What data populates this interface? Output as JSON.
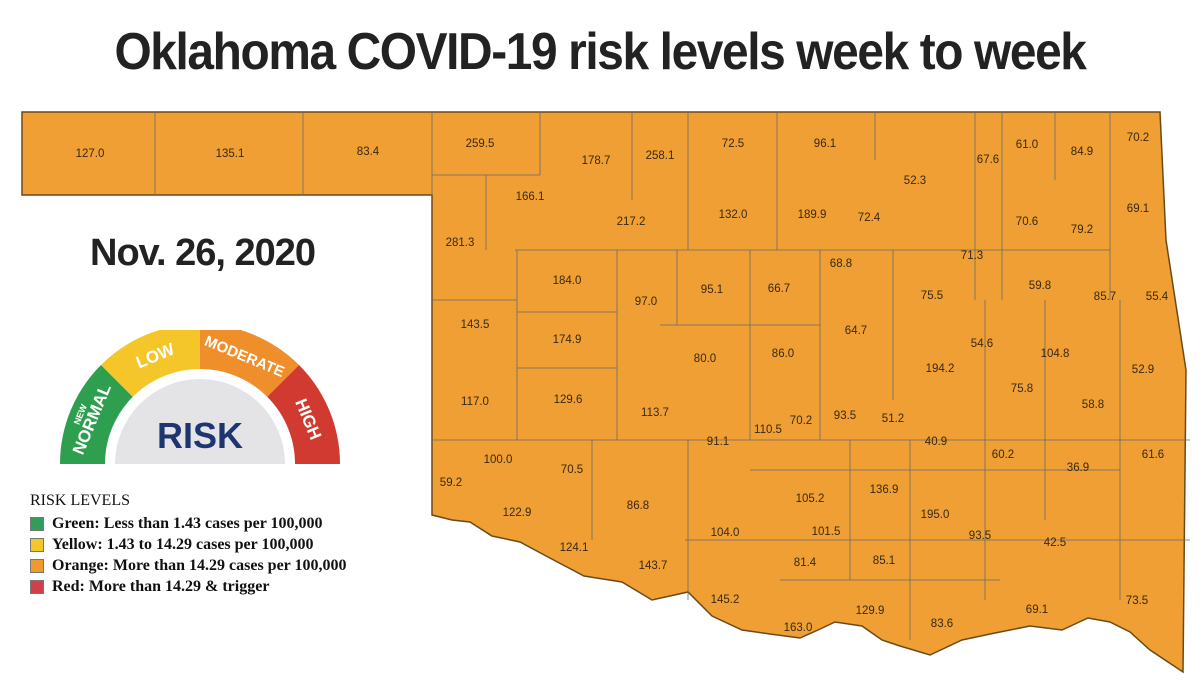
{
  "title": "Oklahoma COVID-19 risk levels week to week",
  "date": "Nov. 26, 2020",
  "map": {
    "fill_color": "#EF9F33",
    "county_rates": [
      "127.0",
      "135.1",
      "83.4",
      "259.5",
      "178.7",
      "258.1",
      "72.5",
      "96.1",
      "67.6",
      "61.0",
      "84.9",
      "70.2",
      "166.1",
      "217.2",
      "132.0",
      "189.9",
      "72.4",
      "52.3",
      "70.6",
      "79.2",
      "69.1",
      "281.3",
      "71.3",
      "68.8",
      "184.0",
      "97.0",
      "95.1",
      "66.7",
      "75.5",
      "59.8",
      "85.7",
      "55.4",
      "143.5",
      "174.9",
      "80.0",
      "86.0",
      "64.7",
      "54.6",
      "104.8",
      "194.2",
      "52.9",
      "117.0",
      "129.6",
      "113.7",
      "110.5",
      "70.2",
      "93.5",
      "51.2",
      "75.8",
      "58.8",
      "40.9",
      "91.1",
      "100.0",
      "59.2",
      "70.5",
      "60.2",
      "36.9",
      "61.6",
      "122.9",
      "86.8",
      "105.2",
      "136.9",
      "195.0",
      "104.0",
      "101.5",
      "93.5",
      "42.5",
      "124.1",
      "143.7",
      "81.4",
      "85.1",
      "73.5",
      "145.2",
      "163.0",
      "129.9",
      "83.6",
      "69.1"
    ]
  },
  "gauge": {
    "center": "RISK",
    "segments": [
      {
        "label_top": "NEW",
        "label": "NORMAL",
        "color": "#2E9E4F"
      },
      {
        "label": "LOW",
        "color": "#F5C62A"
      },
      {
        "label": "MODERATE",
        "color": "#EE8F2B"
      },
      {
        "label": "HIGH",
        "color": "#D13A30"
      }
    ]
  },
  "legend": {
    "heading": "RISK LEVELS",
    "items": [
      {
        "text": "Green:  Less than 1.43 cases per 100,000",
        "color": "#2E9E5A"
      },
      {
        "text": "Yellow: 1.43 to 14.29 cases per 100,000",
        "color": "#F5C62A"
      },
      {
        "text": "Orange: More than 14.29 cases per 100,000",
        "color": "#EE9A30"
      },
      {
        "text": "Red: More than 14.29 & trigger",
        "color": "#D1404A"
      }
    ]
  }
}
